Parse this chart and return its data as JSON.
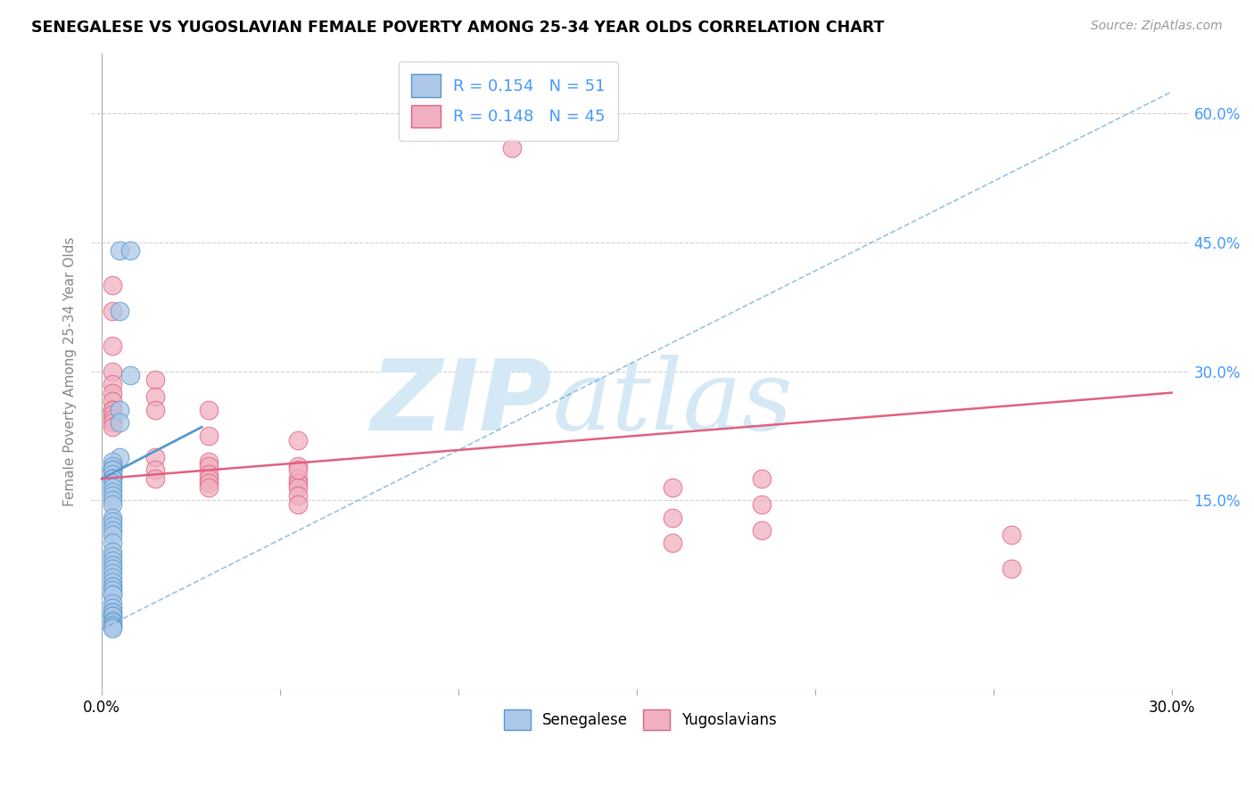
{
  "title": "SENEGALESE VS YUGOSLAVIAN FEMALE POVERTY AMONG 25-34 YEAR OLDS CORRELATION CHART",
  "source": "Source: ZipAtlas.com",
  "ylabel": "Female Poverty Among 25-34 Year Olds",
  "xlabel_legend_blue": "Senegalese",
  "xlabel_legend_pink": "Yugoslavians",
  "xlim": [
    -0.003,
    0.305
  ],
  "ylim": [
    -0.07,
    0.67
  ],
  "ytick_vals": [
    0.15,
    0.3,
    0.45,
    0.6
  ],
  "ytick_labels": [
    "15.0%",
    "30.0%",
    "45.0%",
    "60.0%"
  ],
  "blue_R": 0.154,
  "blue_N": 51,
  "pink_R": 0.148,
  "pink_N": 45,
  "blue_color": "#adc8e8",
  "blue_edge_color": "#5599cc",
  "pink_color": "#f0b0c0",
  "pink_edge_color": "#e06080",
  "legend_text_color": "#4499ff",
  "blue_scatter_x": [
    0.005,
    0.008,
    0.005,
    0.008,
    0.005,
    0.005,
    0.005,
    0.003,
    0.003,
    0.003,
    0.003,
    0.003,
    0.003,
    0.003,
    0.003,
    0.003,
    0.003,
    0.003,
    0.003,
    0.003,
    0.003,
    0.003,
    0.003,
    0.003,
    0.003,
    0.003,
    0.003,
    0.003,
    0.003,
    0.003,
    0.003,
    0.003,
    0.003,
    0.003,
    0.003,
    0.003,
    0.003,
    0.003,
    0.003,
    0.003,
    0.003,
    0.003,
    0.003,
    0.003,
    0.003,
    0.003,
    0.003,
    0.003,
    0.003,
    0.003,
    0.003
  ],
  "blue_scatter_y": [
    0.44,
    0.44,
    0.37,
    0.295,
    0.255,
    0.24,
    0.2,
    0.195,
    0.19,
    0.185,
    0.185,
    0.18,
    0.175,
    0.175,
    0.175,
    0.17,
    0.165,
    0.16,
    0.155,
    0.15,
    0.145,
    0.13,
    0.125,
    0.12,
    0.115,
    0.11,
    0.1,
    0.09,
    0.085,
    0.08,
    0.075,
    0.07,
    0.065,
    0.06,
    0.055,
    0.05,
    0.05,
    0.045,
    0.04,
    0.04,
    0.03,
    0.025,
    0.02,
    0.02,
    0.015,
    0.015,
    0.01,
    0.008,
    0.005,
    0.003,
    0.001
  ],
  "pink_scatter_x": [
    0.115,
    0.003,
    0.003,
    0.003,
    0.003,
    0.003,
    0.003,
    0.003,
    0.003,
    0.003,
    0.003,
    0.003,
    0.003,
    0.003,
    0.003,
    0.015,
    0.015,
    0.015,
    0.015,
    0.015,
    0.015,
    0.03,
    0.03,
    0.03,
    0.03,
    0.03,
    0.03,
    0.03,
    0.03,
    0.055,
    0.055,
    0.055,
    0.055,
    0.055,
    0.055,
    0.055,
    0.055,
    0.16,
    0.16,
    0.16,
    0.185,
    0.185,
    0.185,
    0.255,
    0.255
  ],
  "pink_scatter_y": [
    0.56,
    0.4,
    0.37,
    0.33,
    0.3,
    0.285,
    0.275,
    0.265,
    0.255,
    0.255,
    0.25,
    0.245,
    0.24,
    0.235,
    0.185,
    0.29,
    0.27,
    0.255,
    0.2,
    0.185,
    0.175,
    0.255,
    0.225,
    0.195,
    0.19,
    0.18,
    0.175,
    0.17,
    0.165,
    0.22,
    0.19,
    0.175,
    0.17,
    0.165,
    0.155,
    0.145,
    0.185,
    0.165,
    0.13,
    0.1,
    0.175,
    0.145,
    0.115,
    0.11,
    0.07
  ],
  "blue_solid_trend_x": [
    0.0,
    0.028
  ],
  "blue_solid_trend_y": [
    0.175,
    0.235
  ],
  "blue_dashed_trend_x": [
    0.0,
    0.3
  ],
  "blue_dashed_trend_y": [
    0.0,
    0.625
  ],
  "pink_trend_x": [
    0.0,
    0.3
  ],
  "pink_trend_y": [
    0.175,
    0.275
  ],
  "watermark_zip": "ZIP",
  "watermark_atlas": "atlas",
  "watermark_color": "#d5e8f5",
  "grid_color": "#d0d0d0",
  "background_color": "#ffffff"
}
